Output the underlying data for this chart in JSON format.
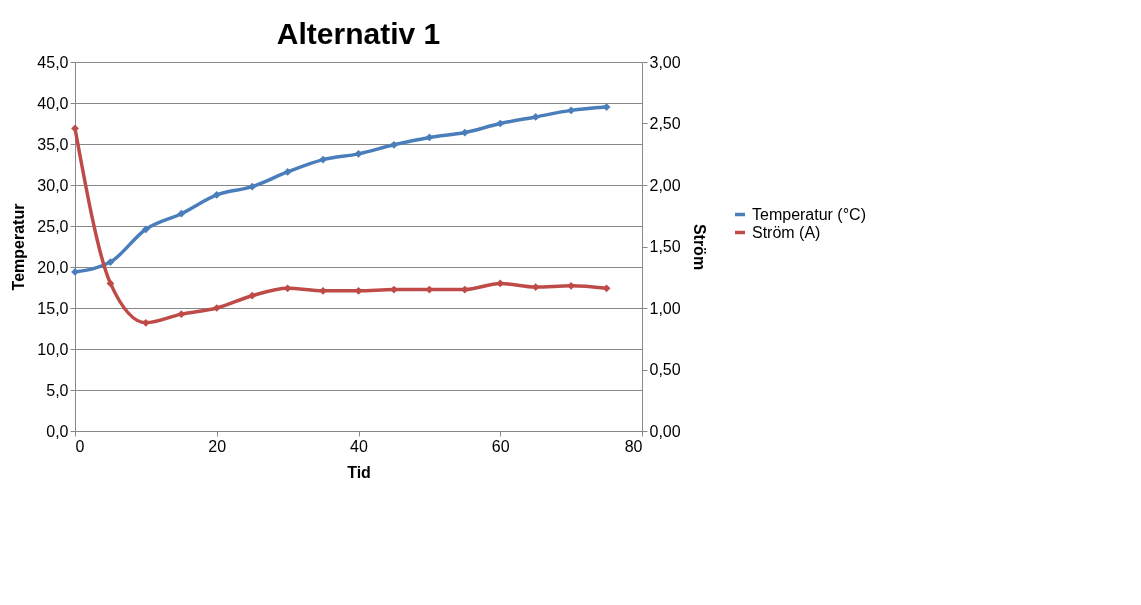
{
  "chart_data": {
    "type": "line",
    "title": "Alternativ 1",
    "xlabel": "Tid",
    "ylabel": "Temperatur",
    "y2label": "Ström",
    "x": [
      0,
      5,
      10,
      15,
      20,
      25,
      30,
      35,
      40,
      45,
      50,
      55,
      60,
      65,
      70,
      75
    ],
    "series": [
      {
        "name": "Temperatur (°C)",
        "color": "#4a7ebb",
        "values": [
          19.4,
          20.6,
          24.6,
          26.5,
          28.8,
          29.8,
          31.6,
          33.1,
          33.8,
          34.9,
          35.8,
          36.4,
          37.5,
          38.3,
          39.1,
          39.5
        ]
      },
      {
        "name": "Ström (A)",
        "color": "#be4b48",
        "axis": "y2",
        "values": [
          2.46,
          1.2,
          0.88,
          0.95,
          1.0,
          1.1,
          1.16,
          1.14,
          1.14,
          1.15,
          1.15,
          1.15,
          1.2,
          1.17,
          1.18,
          1.16
        ]
      }
    ],
    "xlim": [
      0,
      80
    ],
    "xticks": [
      0,
      20,
      40,
      60,
      80
    ],
    "ylim": [
      0,
      45
    ],
    "yticks": [
      {
        "value": 0,
        "label": "0,0"
      },
      {
        "value": 5,
        "label": "5,0"
      },
      {
        "value": 10,
        "label": "10,0"
      },
      {
        "value": 15,
        "label": "15,0"
      },
      {
        "value": 20,
        "label": "20,0"
      },
      {
        "value": 25,
        "label": "25,0"
      },
      {
        "value": 30,
        "label": "30,0"
      },
      {
        "value": 35,
        "label": "35,0"
      },
      {
        "value": 40,
        "label": "40,0"
      },
      {
        "value": 45,
        "label": "45,0"
      }
    ],
    "y2lim": [
      0,
      3
    ],
    "y2ticks": [
      {
        "value": 0,
        "label": "0,00"
      },
      {
        "value": 0.5,
        "label": "0,50"
      },
      {
        "value": 1,
        "label": "1,00"
      },
      {
        "value": 1.5,
        "label": "1,50"
      },
      {
        "value": 2,
        "label": "2,00"
      },
      {
        "value": 2.5,
        "label": "2,50"
      },
      {
        "value": 3,
        "label": "3,00"
      }
    ],
    "grid": "y",
    "legend": "right",
    "marker": "diamond",
    "line_style": "solid"
  }
}
